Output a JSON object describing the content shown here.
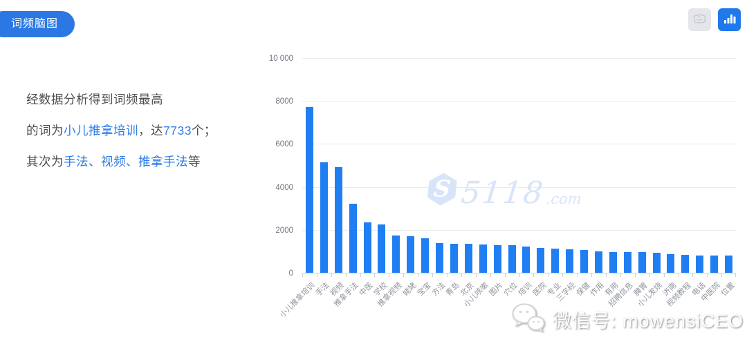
{
  "badge": {
    "label": "词频脑图"
  },
  "description": {
    "lines": [
      {
        "segments": [
          {
            "text": "经数据分析得到词频最高",
            "type": "normal"
          }
        ]
      },
      {
        "segments": [
          {
            "text": "的词为",
            "type": "normal"
          },
          {
            "text": "小儿推拿培训",
            "type": "highlight"
          },
          {
            "text": "，达",
            "type": "normal"
          },
          {
            "text": "7733",
            "type": "highlight"
          },
          {
            "text": "个；",
            "type": "normal"
          }
        ]
      },
      {
        "segments": [
          {
            "text": "其次为",
            "type": "normal"
          },
          {
            "text": "手法、视频、推拿手法",
            "type": "highlight"
          },
          {
            "text": "等",
            "type": "normal"
          }
        ]
      }
    ]
  },
  "toolbar": {
    "buttons": [
      {
        "name": "brain-map-view",
        "icon": "brain-icon",
        "active": false
      },
      {
        "name": "bar-chart-view",
        "icon": "bar-chart-icon",
        "active": true
      }
    ]
  },
  "watermark": {
    "text": "5118",
    "suffix": ".com",
    "logo": "5118-hexagon-s-logo"
  },
  "footer": {
    "wechat_label": "微信号: mowensiCEO",
    "icon": "wechat-icon"
  },
  "colors": {
    "bar": "#1f7ff2",
    "badge_bg": "#2b78e4",
    "highlight_blue": "#2b7ce9",
    "text_dark": "#4d4d4d",
    "axis_label": "#6e7681",
    "category_label": "#8f949c",
    "gridline": "#eaeceb",
    "watermark_blue": "#d8e5f8",
    "active_button_bg": "#1f78ec",
    "inactive_button_bg": "#e4e6ea"
  },
  "chart_data": {
    "type": "bar",
    "title": "词频脑图",
    "categories": [
      "小儿推拿培训",
      "手法",
      "视频",
      "推拿手法",
      "中医",
      "学校",
      "推拿视频",
      "姥姥",
      "宝宝",
      "方法",
      "青岛",
      "北京",
      "小儿咳嗽",
      "图片",
      "穴位",
      "培训",
      "医院",
      "专业",
      "三字经",
      "保健",
      "作用",
      "有用",
      "招聘信息",
      "脾胃",
      "小儿发烧",
      "济南",
      "视频教程",
      "电话",
      "中医院",
      "位置"
    ],
    "values": [
      7733,
      5150,
      4920,
      3200,
      2360,
      2250,
      1730,
      1720,
      1610,
      1390,
      1360,
      1350,
      1330,
      1300,
      1290,
      1210,
      1160,
      1110,
      1085,
      1060,
      1000,
      980,
      965,
      950,
      925,
      870,
      850,
      820,
      810,
      800
    ],
    "xlabel": "",
    "ylabel": "",
    "ylim": [
      0,
      10000
    ],
    "yticks": [
      0,
      2000,
      4000,
      6000,
      8000,
      10000
    ],
    "ytick_labels": [
      "0",
      "2000",
      "4000",
      "6000",
      "8000",
      "10 000"
    ],
    "grid": true,
    "legend": null,
    "bar_color": "#1f7ff2",
    "x_label_rotation": -45
  }
}
